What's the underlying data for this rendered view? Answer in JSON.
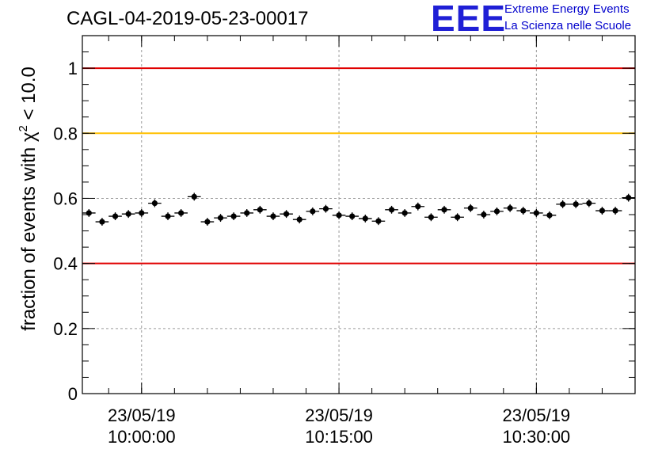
{
  "header": {
    "run_title": "CAGL-04-2019-05-23-00017",
    "logo": {
      "mark": "EEE",
      "line1": "Extreme Energy Events",
      "line2": "La Scienza nelle Scuole",
      "color": "#1f1fd6"
    }
  },
  "chart_data": {
    "type": "scatter",
    "title": "CAGL-04-2019-05-23-00017",
    "ylabel_prefix": "fraction of events with ",
    "ylabel_symbol": "χ",
    "ylabel_sup": "2",
    "ylabel_suffix": " < 10.0",
    "xlabel": "",
    "ylim": [
      0,
      1.1
    ],
    "xlim": [
      "23/05/19 09:55:30",
      "23/05/19 10:37:30"
    ],
    "grid": true,
    "yticks": [
      0,
      0.2,
      0.4,
      0.6,
      0.8,
      1
    ],
    "ytick_labels": [
      "0",
      "0.2",
      "0.4",
      "0.6",
      "0.8",
      "1"
    ],
    "xticks": [
      {
        "time": "10:00:00",
        "date": "23/05/19"
      },
      {
        "time": "10:15:00",
        "date": "23/05/19"
      },
      {
        "time": "10:30:00",
        "date": "23/05/19"
      }
    ],
    "reference_lines": [
      {
        "y": 1.0,
        "color": "#e00000"
      },
      {
        "y": 0.8,
        "color": "#ffc000"
      },
      {
        "y": 0.4,
        "color": "#e00000"
      }
    ],
    "series": [
      {
        "marker_color": "#000000",
        "x_step_minutes": 1,
        "x_error_minutes": 0.5,
        "x": [
          "09:56:00",
          "09:57:00",
          "09:58:00",
          "09:59:00",
          "10:00:00",
          "10:01:00",
          "10:02:00",
          "10:03:00",
          "10:04:00",
          "10:05:00",
          "10:06:00",
          "10:07:00",
          "10:08:00",
          "10:09:00",
          "10:10:00",
          "10:11:00",
          "10:12:00",
          "10:13:00",
          "10:14:00",
          "10:15:00",
          "10:16:00",
          "10:17:00",
          "10:18:00",
          "10:19:00",
          "10:20:00",
          "10:21:00",
          "10:22:00",
          "10:23:00",
          "10:24:00",
          "10:25:00",
          "10:26:00",
          "10:27:00",
          "10:28:00",
          "10:29:00",
          "10:30:00",
          "10:31:00",
          "10:32:00",
          "10:33:00",
          "10:34:00",
          "10:35:00",
          "10:36:00",
          "10:37:00"
        ],
        "y": [
          0.555,
          0.528,
          0.545,
          0.552,
          0.555,
          0.585,
          0.545,
          0.555,
          0.605,
          0.528,
          0.54,
          0.545,
          0.555,
          0.565,
          0.545,
          0.552,
          0.535,
          0.56,
          0.568,
          0.548,
          0.545,
          0.538,
          0.53,
          0.565,
          0.555,
          0.575,
          0.542,
          0.565,
          0.542,
          0.57,
          0.55,
          0.56,
          0.57,
          0.562,
          0.555,
          0.548,
          0.582,
          0.582,
          0.585,
          0.562,
          0.562,
          0.602
        ],
        "y_error": 0.012
      }
    ]
  }
}
